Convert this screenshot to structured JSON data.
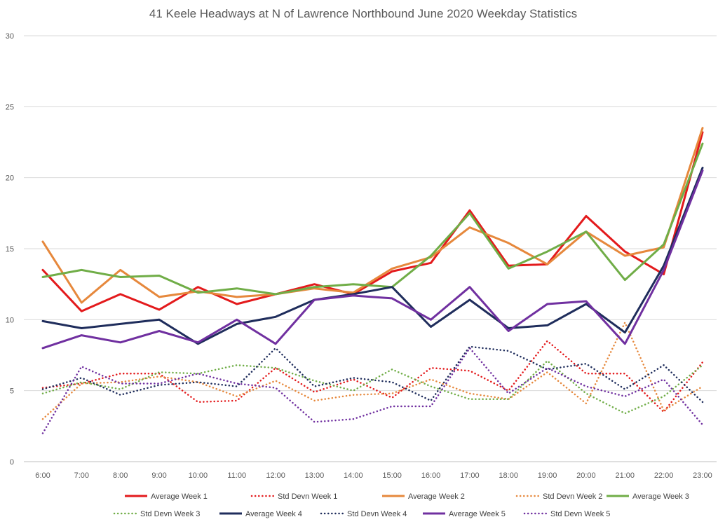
{
  "chart_data": {
    "type": "line",
    "title": "41 Keele Headways at N of Lawrence Northbound June 2020 Weekday Statistics",
    "xlabel": "",
    "ylabel": "",
    "ylim": [
      0,
      30
    ],
    "yticks": [
      0,
      5,
      10,
      15,
      20,
      25,
      30
    ],
    "grid": "horizontal",
    "legend_position": "bottom",
    "categories": [
      "6:00",
      "7:00",
      "8:00",
      "9:00",
      "10:00",
      "11:00",
      "12:00",
      "13:00",
      "14:00",
      "15:00",
      "16:00",
      "17:00",
      "18:00",
      "19:00",
      "20:00",
      "21:00",
      "22:00",
      "23:00"
    ],
    "series": [
      {
        "name": "Average Week 1",
        "color": "#e31a1c",
        "style": "solid",
        "values": [
          13.5,
          10.6,
          11.8,
          10.7,
          12.3,
          11.1,
          11.8,
          12.5,
          11.8,
          13.4,
          14.0,
          17.7,
          13.8,
          13.9,
          17.3,
          14.8,
          13.2,
          23.2
        ]
      },
      {
        "name": "Std Devn Week 1",
        "color": "#e31a1c",
        "style": "dotted",
        "values": [
          5.2,
          5.5,
          6.2,
          6.2,
          4.2,
          4.3,
          6.6,
          4.9,
          5.8,
          4.5,
          6.6,
          6.4,
          5.0,
          8.5,
          6.2,
          6.2,
          3.5,
          7.0
        ]
      },
      {
        "name": "Average Week 2",
        "color": "#e6883c",
        "style": "solid",
        "values": [
          15.5,
          11.2,
          13.5,
          11.6,
          12.0,
          11.6,
          11.8,
          12.2,
          11.9,
          13.6,
          14.4,
          16.5,
          15.4,
          13.9,
          16.2,
          14.5,
          15.1,
          23.5
        ]
      },
      {
        "name": "Std Devn Week 2",
        "color": "#e6883c",
        "style": "dotted",
        "values": [
          3.0,
          5.5,
          5.6,
          6.0,
          5.6,
          4.6,
          5.7,
          4.3,
          4.7,
          4.8,
          5.8,
          4.8,
          4.4,
          6.3,
          4.1,
          9.8,
          3.6,
          5.3
        ]
      },
      {
        "name": "Average Week 3",
        "color": "#70ad47",
        "style": "solid",
        "values": [
          13.0,
          13.5,
          13.0,
          13.1,
          11.9,
          12.2,
          11.8,
          12.3,
          12.5,
          12.3,
          14.5,
          17.5,
          13.6,
          14.8,
          16.2,
          12.8,
          15.3,
          22.4
        ]
      },
      {
        "name": "Std Devn Week 3",
        "color": "#70ad47",
        "style": "dotted",
        "values": [
          4.8,
          5.6,
          5.1,
          6.3,
          6.2,
          6.8,
          6.6,
          5.7,
          5.0,
          6.5,
          5.3,
          4.4,
          4.4,
          7.1,
          4.8,
          3.4,
          4.6,
          6.8
        ]
      },
      {
        "name": "Average Week 4",
        "color": "#1f2d5c",
        "style": "solid",
        "values": [
          9.9,
          9.4,
          9.7,
          10.0,
          8.3,
          9.7,
          10.2,
          11.4,
          11.8,
          12.3,
          9.5,
          11.4,
          9.4,
          9.6,
          11.1,
          9.1,
          13.8,
          20.7
        ]
      },
      {
        "name": "Std Devn Week 4",
        "color": "#1f2d5c",
        "style": "dotted",
        "values": [
          5.1,
          5.9,
          4.7,
          5.4,
          5.6,
          5.3,
          8.0,
          5.3,
          5.9,
          5.6,
          4.3,
          8.1,
          7.8,
          6.5,
          6.9,
          5.1,
          6.8,
          4.2
        ]
      },
      {
        "name": "Average Week 5",
        "color": "#7030a0",
        "style": "solid",
        "values": [
          8.0,
          8.9,
          8.4,
          9.2,
          8.4,
          10.0,
          8.3,
          11.4,
          11.7,
          11.5,
          10.0,
          12.3,
          9.2,
          11.1,
          11.3,
          8.3,
          13.5,
          20.5
        ]
      },
      {
        "name": "Std Devn Week 5",
        "color": "#7030a0",
        "style": "dotted",
        "values": [
          2.0,
          6.7,
          5.5,
          5.5,
          6.2,
          5.5,
          5.2,
          2.8,
          3.0,
          3.9,
          3.9,
          8.0,
          4.8,
          6.6,
          5.3,
          4.6,
          5.8,
          2.6
        ]
      }
    ]
  }
}
